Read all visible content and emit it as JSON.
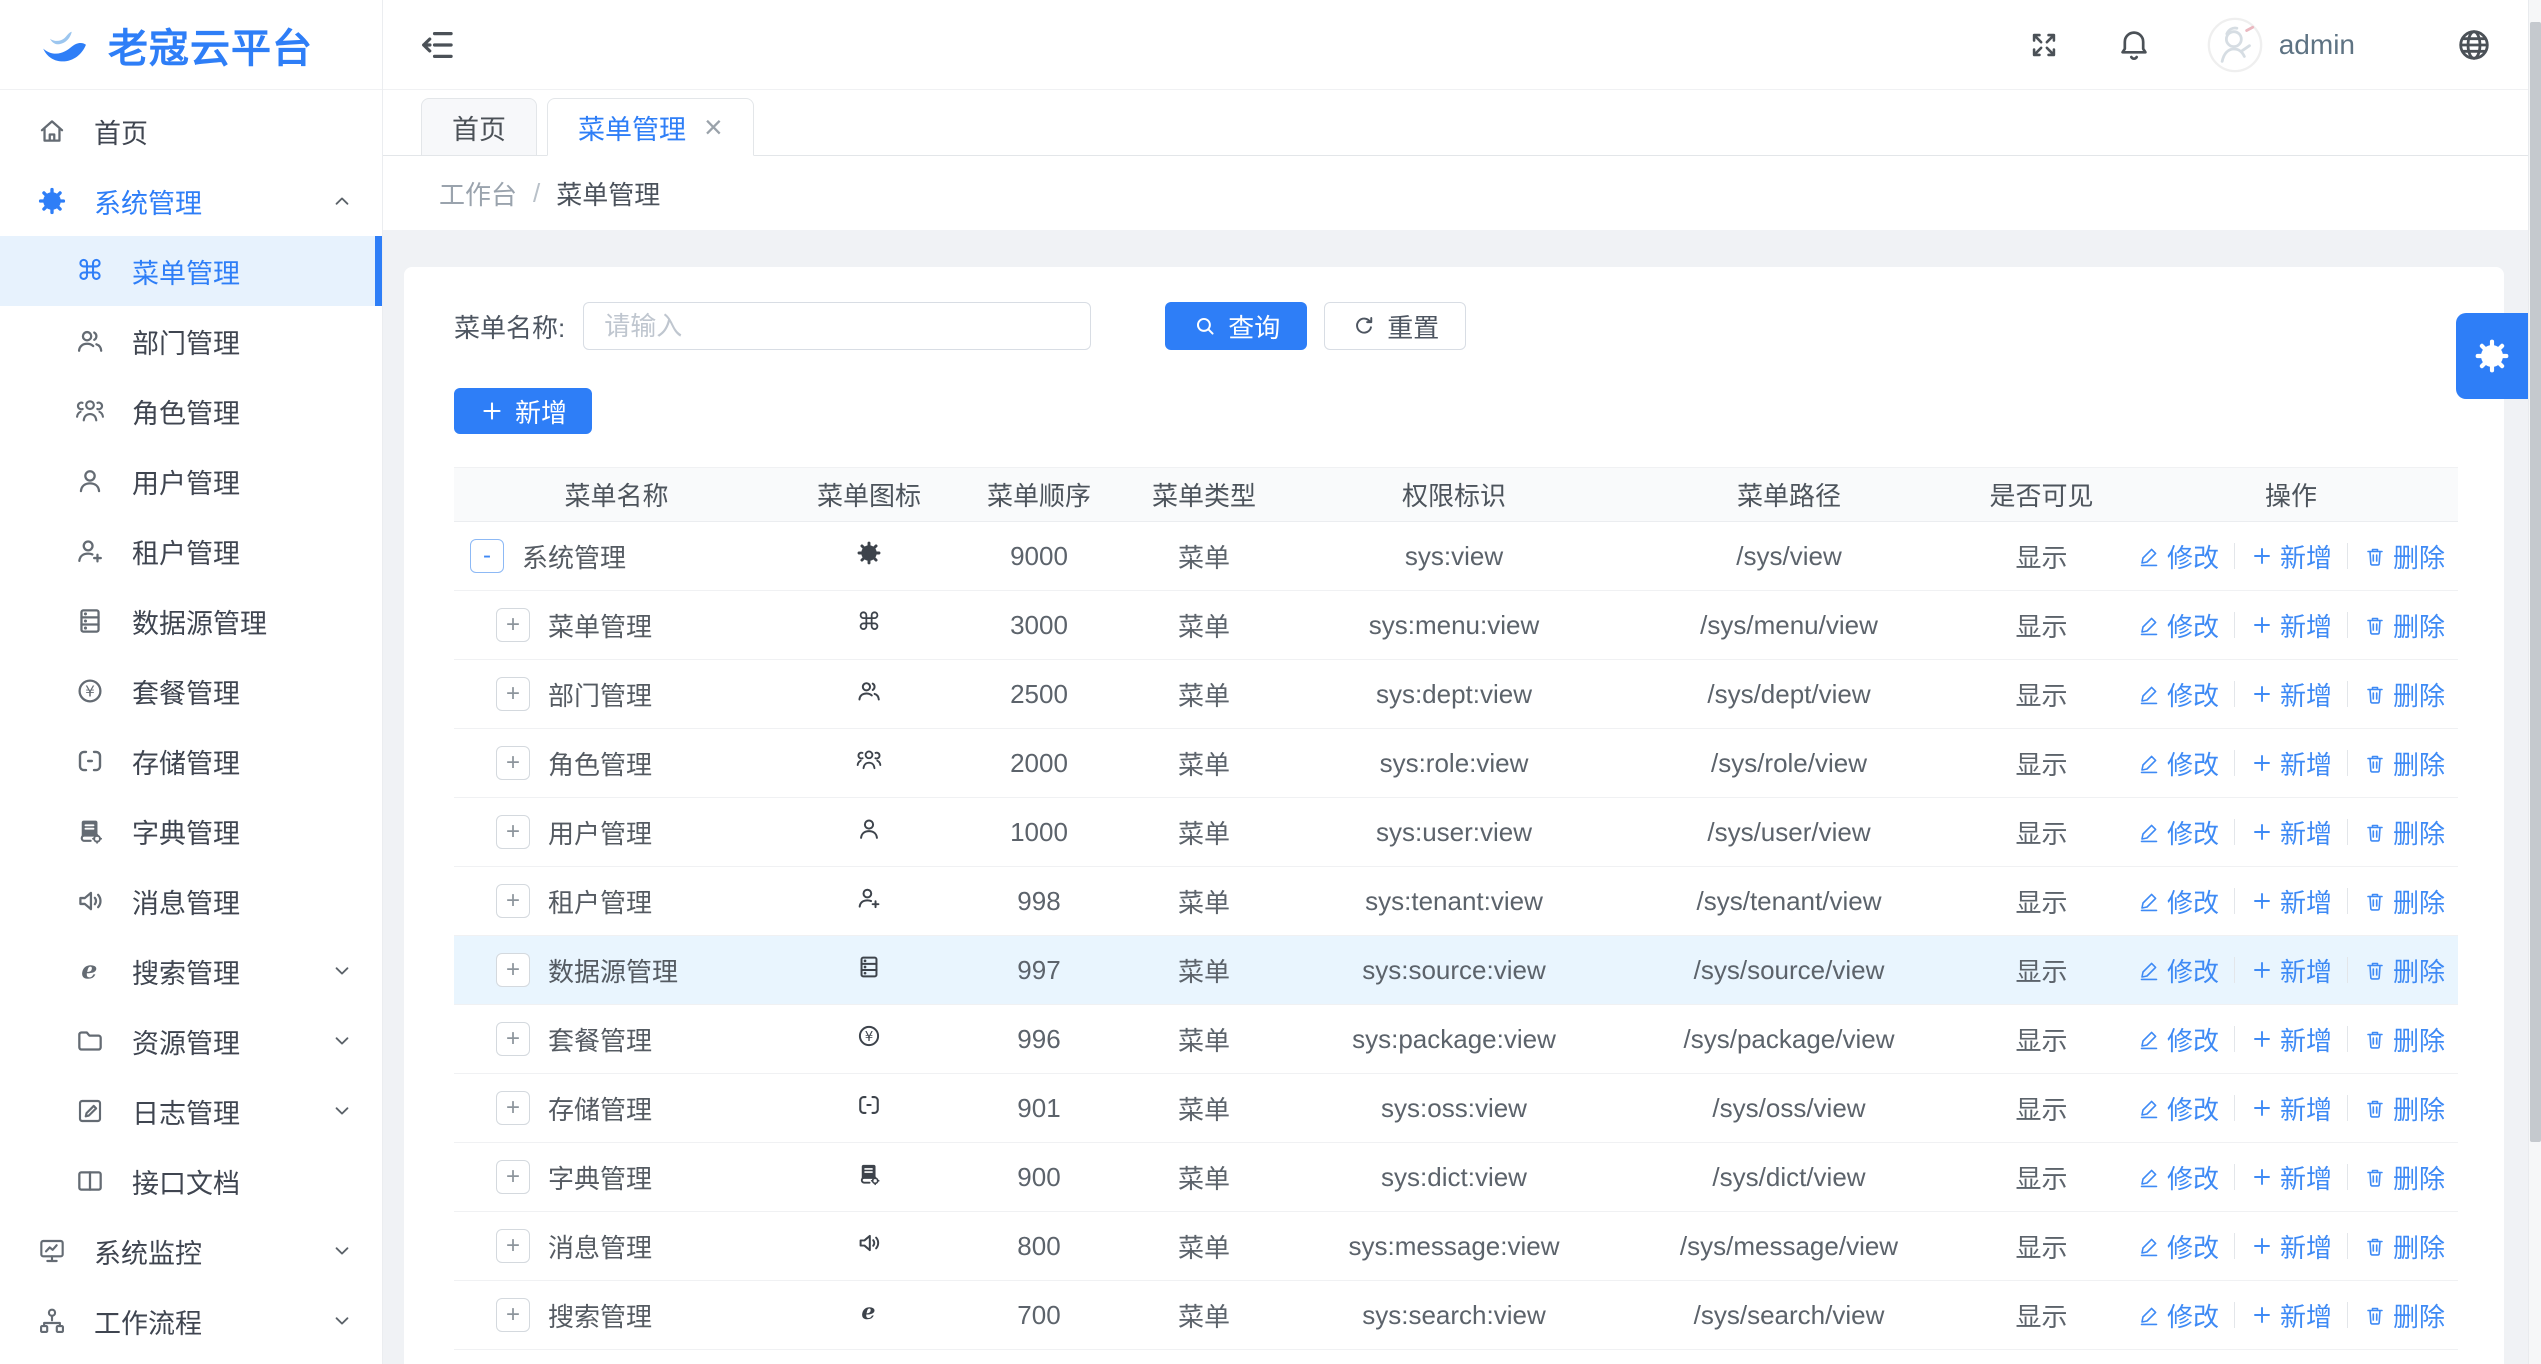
{
  "brand": {
    "title": "老寇云平台",
    "logo_icon": "swan"
  },
  "header": {
    "collapse_icon": "collapse",
    "fullscreen_icon": "fullscreen",
    "bell_icon": "bell",
    "username": "admin",
    "globe_icon": "globe"
  },
  "tabs": [
    {
      "label": "首页"
    },
    {
      "label": "菜单管理",
      "active": true,
      "close": "×"
    }
  ],
  "breadcrumb": {
    "items": [
      "工作台",
      "菜单管理"
    ],
    "separator": "/"
  },
  "filter": {
    "label": "菜单名称:",
    "placeholder": "请输入",
    "search_label": "查询",
    "reset_label": "重置",
    "add_label": "新增"
  },
  "sidebar": {
    "items": [
      {
        "label": "首页",
        "icon": "home",
        "level": 0
      },
      {
        "label": "系统管理",
        "icon": "gear",
        "level": 0,
        "active": true,
        "chevron": "up"
      },
      {
        "label": "菜单管理",
        "icon": "command",
        "level": 1,
        "selected": true
      },
      {
        "label": "部门管理",
        "icon": "dept",
        "level": 1
      },
      {
        "label": "角色管理",
        "icon": "role",
        "level": 1
      },
      {
        "label": "用户管理",
        "icon": "user",
        "level": 1
      },
      {
        "label": "租户管理",
        "icon": "tenant",
        "level": 1
      },
      {
        "label": "数据源管理",
        "icon": "datasource",
        "level": 1
      },
      {
        "label": "套餐管理",
        "icon": "package",
        "level": 1
      },
      {
        "label": "存储管理",
        "icon": "storage",
        "level": 1
      },
      {
        "label": "字典管理",
        "icon": "dict",
        "level": 1
      },
      {
        "label": "消息管理",
        "icon": "message",
        "level": 1
      },
      {
        "label": "搜索管理",
        "icon": "search-e",
        "level": 1,
        "chevron": "down"
      },
      {
        "label": "资源管理",
        "icon": "folder",
        "level": 1,
        "chevron": "down"
      },
      {
        "label": "日志管理",
        "icon": "log",
        "level": 1,
        "chevron": "down"
      },
      {
        "label": "接口文档",
        "icon": "doc",
        "level": 1
      },
      {
        "label": "系统监控",
        "icon": "monitor",
        "level": 0,
        "chevron": "down"
      },
      {
        "label": "工作流程",
        "icon": "workflow",
        "level": 0,
        "chevron": "down"
      }
    ]
  },
  "table": {
    "columns": [
      "菜单名称",
      "菜单图标",
      "菜单顺序",
      "菜单类型",
      "权限标识",
      "菜单路径",
      "是否可见",
      "操作"
    ],
    "actions": {
      "edit": "修改",
      "add": "新增",
      "delete": "删除"
    },
    "rows": [
      {
        "expand": "-",
        "root": true,
        "name": "系统管理",
        "icon": "gear",
        "order": "9000",
        "type": "菜单",
        "perm": "sys:view",
        "path": "/sys/view",
        "visible": "显示"
      },
      {
        "expand": "+",
        "name": "菜单管理",
        "icon": "command",
        "order": "3000",
        "type": "菜单",
        "perm": "sys:menu:view",
        "path": "/sys/menu/view",
        "visible": "显示"
      },
      {
        "expand": "+",
        "name": "部门管理",
        "icon": "dept",
        "order": "2500",
        "type": "菜单",
        "perm": "sys:dept:view",
        "path": "/sys/dept/view",
        "visible": "显示"
      },
      {
        "expand": "+",
        "name": "角色管理",
        "icon": "role",
        "order": "2000",
        "type": "菜单",
        "perm": "sys:role:view",
        "path": "/sys/role/view",
        "visible": "显示"
      },
      {
        "expand": "+",
        "name": "用户管理",
        "icon": "user",
        "order": "1000",
        "type": "菜单",
        "perm": "sys:user:view",
        "path": "/sys/user/view",
        "visible": "显示"
      },
      {
        "expand": "+",
        "name": "租户管理",
        "icon": "tenant",
        "order": "998",
        "type": "菜单",
        "perm": "sys:tenant:view",
        "path": "/sys/tenant/view",
        "visible": "显示"
      },
      {
        "expand": "+",
        "name": "数据源管理",
        "icon": "datasource",
        "order": "997",
        "type": "菜单",
        "perm": "sys:source:view",
        "path": "/sys/source/view",
        "visible": "显示",
        "highlight": true
      },
      {
        "expand": "+",
        "name": "套餐管理",
        "icon": "package",
        "order": "996",
        "type": "菜单",
        "perm": "sys:package:view",
        "path": "/sys/package/view",
        "visible": "显示"
      },
      {
        "expand": "+",
        "name": "存储管理",
        "icon": "storage",
        "order": "901",
        "type": "菜单",
        "perm": "sys:oss:view",
        "path": "/sys/oss/view",
        "visible": "显示"
      },
      {
        "expand": "+",
        "name": "字典管理",
        "icon": "dict",
        "order": "900",
        "type": "菜单",
        "perm": "sys:dict:view",
        "path": "/sys/dict/view",
        "visible": "显示"
      },
      {
        "expand": "+",
        "name": "消息管理",
        "icon": "message",
        "order": "800",
        "type": "菜单",
        "perm": "sys:message:view",
        "path": "/sys/message/view",
        "visible": "显示"
      },
      {
        "expand": "+",
        "name": "搜索管理",
        "icon": "search-e",
        "order": "700",
        "type": "菜单",
        "perm": "sys:search:view",
        "path": "/sys/search/view",
        "visible": "显示"
      }
    ]
  },
  "colors": {
    "primary": "#2e7ef7",
    "sidebar_selected_bg": "#e7f2fd",
    "row_highlight_bg": "#e9f5fe",
    "content_bg": "#f0f2f5"
  }
}
